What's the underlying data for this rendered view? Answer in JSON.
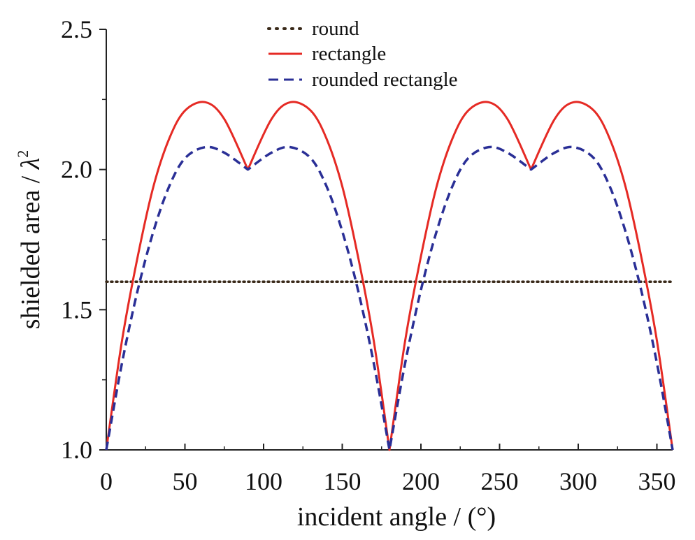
{
  "chart_data": {
    "type": "line",
    "title": "",
    "xlabel": "incident angle / (°)",
    "ylabel_text": "shielded area / ",
    "ylabel_symbol": "λ",
    "ylabel_exponent": "2",
    "xlim": [
      0,
      360
    ],
    "ylim": [
      1.0,
      2.5
    ],
    "x_ticks": [
      0,
      50,
      100,
      150,
      200,
      250,
      300,
      350
    ],
    "x_tick_labels": [
      "0",
      "50",
      "100",
      "150",
      "200",
      "250",
      "300",
      "350"
    ],
    "y_ticks": [
      1.0,
      1.5,
      2.0,
      2.5
    ],
    "y_tick_labels": [
      "1.0",
      "1.5",
      "2.0",
      "2.5"
    ],
    "grid": false,
    "legend_position": "top-center",
    "x": [
      0,
      10,
      20,
      30,
      40,
      50,
      63,
      75,
      90,
      105,
      117,
      130,
      140,
      150,
      160,
      170,
      180,
      190,
      200,
      210,
      220,
      230,
      243,
      255,
      270,
      285,
      297,
      310,
      320,
      330,
      340,
      350,
      360
    ],
    "series": [
      {
        "name": "round",
        "style": "dotted",
        "color": "#3a2a1a",
        "values": [
          1.6,
          1.6,
          1.6,
          1.6,
          1.6,
          1.6,
          1.6,
          1.6,
          1.6,
          1.6,
          1.6,
          1.6,
          1.6,
          1.6,
          1.6,
          1.6,
          1.6,
          1.6,
          1.6,
          1.6,
          1.6,
          1.6,
          1.6,
          1.6,
          1.6,
          1.6,
          1.6,
          1.6,
          1.6,
          1.6,
          1.6,
          1.6,
          1.6
        ]
      },
      {
        "name": "rectangle",
        "style": "solid",
        "color": "#e52a24",
        "values": [
          1.0,
          1.39,
          1.69,
          1.94,
          2.11,
          2.21,
          2.24,
          2.18,
          2.0,
          2.18,
          2.24,
          2.21,
          2.11,
          1.94,
          1.69,
          1.39,
          1.0,
          1.39,
          1.69,
          1.94,
          2.11,
          2.21,
          2.24,
          2.18,
          2.0,
          2.18,
          2.24,
          2.21,
          2.11,
          1.94,
          1.69,
          1.39,
          1.0
        ]
      },
      {
        "name": "rounded rectangle",
        "style": "dashed",
        "color": "#2a2f96",
        "values": [
          1.0,
          1.31,
          1.57,
          1.78,
          1.94,
          2.04,
          2.08,
          2.06,
          2.0,
          2.06,
          2.08,
          2.04,
          1.94,
          1.78,
          1.57,
          1.31,
          1.0,
          1.31,
          1.57,
          1.78,
          1.94,
          2.04,
          2.08,
          2.06,
          2.0,
          2.06,
          2.08,
          2.04,
          1.94,
          1.78,
          1.57,
          1.31,
          1.0
        ]
      }
    ]
  }
}
